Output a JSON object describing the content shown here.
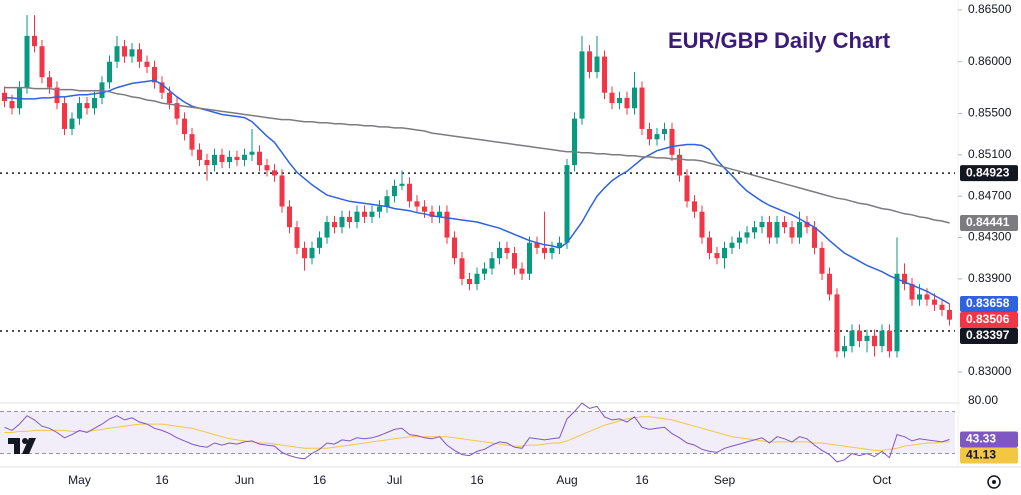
{
  "chart_data": {
    "type": "candlestick",
    "title": "EUR/GBP Daily Chart",
    "categories": [
      null,
      null,
      null,
      null,
      null,
      null,
      null,
      null,
      null,
      null,
      "May",
      null,
      null,
      null,
      null,
      null,
      null,
      null,
      null,
      null,
      null,
      "16",
      null,
      null,
      null,
      null,
      null,
      null,
      null,
      null,
      null,
      null,
      "Jun",
      null,
      null,
      null,
      null,
      null,
      null,
      null,
      null,
      null,
      "16",
      null,
      null,
      null,
      null,
      null,
      null,
      null,
      null,
      null,
      "Jul",
      null,
      null,
      null,
      null,
      null,
      null,
      null,
      null,
      null,
      null,
      "16",
      null,
      null,
      null,
      null,
      null,
      null,
      null,
      null,
      null,
      null,
      null,
      "Aug",
      null,
      null,
      null,
      null,
      null,
      null,
      null,
      null,
      null,
      "16",
      null,
      null,
      null,
      null,
      null,
      null,
      null,
      null,
      null,
      null,
      "Sep",
      null,
      null,
      null,
      null,
      null,
      null,
      null,
      null,
      null,
      null,
      null,
      null,
      null,
      null,
      null,
      null,
      null,
      null,
      null,
      null,
      "Oct",
      null,
      null,
      null,
      null,
      null,
      null,
      null,
      null,
      null
    ],
    "open": [
      0.857,
      0.8562,
      0.8555,
      0.8575,
      0.8625,
      0.8615,
      0.8585,
      0.8575,
      0.856,
      0.8535,
      0.8545,
      0.856,
      0.8555,
      0.8565,
      0.858,
      0.86,
      0.8615,
      0.8605,
      0.8612,
      0.86,
      0.8595,
      0.858,
      0.857,
      0.856,
      0.8545,
      0.853,
      0.8515,
      0.8505,
      0.85,
      0.851,
      0.8503,
      0.8508,
      0.8505,
      0.851,
      0.8513,
      0.85,
      0.8495,
      0.849,
      0.846,
      0.844,
      0.842,
      0.841,
      0.842,
      0.843,
      0.8445,
      0.844,
      0.845,
      0.8445,
      0.8455,
      0.845,
      0.8455,
      0.846,
      0.847,
      0.848,
      0.8482,
      0.8465,
      0.846,
      0.8455,
      0.845,
      0.8455,
      0.843,
      0.841,
      0.839,
      0.8385,
      0.8395,
      0.84,
      0.841,
      0.842,
      0.8415,
      0.84,
      0.8395,
      0.8425,
      0.842,
      0.8415,
      0.842,
      0.8425,
      0.85,
      0.8545,
      0.861,
      0.859,
      0.8605,
      0.857,
      0.856,
      0.8565,
      0.8555,
      0.8575,
      0.8535,
      0.8525,
      0.853,
      0.8535,
      0.851,
      0.849,
      0.8465,
      0.8455,
      0.843,
      0.8415,
      0.841,
      0.842,
      0.8425,
      0.843,
      0.8435,
      0.844,
      0.8445,
      0.843,
      0.8445,
      0.844,
      0.843,
      0.8445,
      0.844,
      0.842,
      0.8395,
      0.8375,
      0.832,
      0.8325,
      0.834,
      0.833,
      0.8335,
      0.8325,
      0.834,
      0.832,
      0.8395,
      0.8385,
      0.837,
      0.8375,
      0.837,
      0.8365,
      0.836
    ],
    "high": [
      0.8576,
      0.8568,
      0.8581,
      0.8645,
      0.8645,
      0.8621,
      0.8591,
      0.8581,
      0.8566,
      0.8551,
      0.8566,
      0.8566,
      0.8571,
      0.8586,
      0.8606,
      0.8625,
      0.8621,
      0.8618,
      0.8618,
      0.8606,
      0.8601,
      0.8586,
      0.8576,
      0.8566,
      0.8551,
      0.8536,
      0.8521,
      0.8511,
      0.8516,
      0.8516,
      0.8514,
      0.8514,
      0.8516,
      0.8535,
      0.8519,
      0.8506,
      0.8501,
      0.8496,
      0.8466,
      0.8446,
      0.8426,
      0.8426,
      0.8436,
      0.8451,
      0.8451,
      0.8456,
      0.8456,
      0.8461,
      0.8461,
      0.8461,
      0.8466,
      0.8476,
      0.8486,
      0.8495,
      0.8488,
      0.8471,
      0.8466,
      0.8461,
      0.8461,
      0.8461,
      0.8436,
      0.8416,
      0.8396,
      0.8401,
      0.8406,
      0.8416,
      0.8426,
      0.8426,
      0.8421,
      0.8406,
      0.8431,
      0.8431,
      0.8455,
      0.8426,
      0.8431,
      0.8506,
      0.8551,
      0.8625,
      0.8616,
      0.8625,
      0.8611,
      0.8576,
      0.8571,
      0.8571,
      0.859,
      0.8581,
      0.8541,
      0.8536,
      0.8541,
      0.8541,
      0.8516,
      0.8496,
      0.8471,
      0.8461,
      0.8436,
      0.8421,
      0.8426,
      0.8431,
      0.8436,
      0.8441,
      0.8446,
      0.8451,
      0.8451,
      0.8451,
      0.8451,
      0.8446,
      0.8455,
      0.8451,
      0.8446,
      0.8426,
      0.8401,
      0.8381,
      0.8335,
      0.8346,
      0.8346,
      0.8341,
      0.8341,
      0.8346,
      0.8346,
      0.843,
      0.8405,
      0.8391,
      0.8385,
      0.8381,
      0.8376,
      0.8371,
      0.8366
    ],
    "low": [
      0.8556,
      0.8549,
      0.8549,
      0.8569,
      0.8609,
      0.8579,
      0.8569,
      0.8554,
      0.8529,
      0.8529,
      0.8539,
      0.8549,
      0.8549,
      0.8559,
      0.8574,
      0.8594,
      0.8599,
      0.8599,
      0.8594,
      0.8589,
      0.8574,
      0.8564,
      0.8554,
      0.8539,
      0.8524,
      0.8509,
      0.8499,
      0.8485,
      0.8494,
      0.8497,
      0.8497,
      0.8499,
      0.8499,
      0.8504,
      0.8494,
      0.8489,
      0.8484,
      0.8454,
      0.8434,
      0.8414,
      0.8398,
      0.8404,
      0.8414,
      0.8424,
      0.8434,
      0.8434,
      0.8439,
      0.8439,
      0.8444,
      0.8444,
      0.8449,
      0.8454,
      0.8464,
      0.8476,
      0.8459,
      0.8454,
      0.8449,
      0.8444,
      0.8444,
      0.8424,
      0.8404,
      0.8384,
      0.8379,
      0.8379,
      0.8389,
      0.8394,
      0.8404,
      0.8409,
      0.8394,
      0.8389,
      0.8389,
      0.8414,
      0.8409,
      0.8409,
      0.8414,
      0.8419,
      0.8494,
      0.8539,
      0.8584,
      0.8584,
      0.8564,
      0.8554,
      0.8554,
      0.8549,
      0.8549,
      0.8529,
      0.8519,
      0.8519,
      0.8524,
      0.8504,
      0.8484,
      0.8459,
      0.8449,
      0.8424,
      0.8409,
      0.8404,
      0.84,
      0.8414,
      0.8419,
      0.8424,
      0.8429,
      0.8434,
      0.8424,
      0.8424,
      0.8434,
      0.8424,
      0.8424,
      0.8434,
      0.8414,
      0.8389,
      0.8369,
      0.8314,
      0.8314,
      0.8319,
      0.8324,
      0.8319,
      0.8315,
      0.8319,
      0.8314,
      0.8314,
      0.8379,
      0.8364,
      0.8364,
      0.8364,
      0.8359,
      0.8354,
      0.8345
    ],
    "close": [
      0.8562,
      0.8555,
      0.8575,
      0.8625,
      0.8615,
      0.8585,
      0.8575,
      0.856,
      0.8535,
      0.8545,
      0.856,
      0.8555,
      0.8565,
      0.858,
      0.86,
      0.8615,
      0.8605,
      0.8612,
      0.86,
      0.8595,
      0.858,
      0.857,
      0.856,
      0.8545,
      0.853,
      0.8515,
      0.8505,
      0.85,
      0.851,
      0.8503,
      0.8508,
      0.8505,
      0.851,
      0.8513,
      0.85,
      0.8495,
      0.849,
      0.846,
      0.844,
      0.842,
      0.841,
      0.842,
      0.843,
      0.8445,
      0.844,
      0.845,
      0.8445,
      0.8455,
      0.845,
      0.8455,
      0.846,
      0.847,
      0.848,
      0.8482,
      0.8465,
      0.846,
      0.8455,
      0.845,
      0.8455,
      0.843,
      0.841,
      0.839,
      0.8385,
      0.8395,
      0.84,
      0.841,
      0.842,
      0.8415,
      0.84,
      0.8395,
      0.8425,
      0.842,
      0.8415,
      0.842,
      0.8425,
      0.85,
      0.8545,
      0.861,
      0.859,
      0.8605,
      0.857,
      0.856,
      0.8565,
      0.8555,
      0.8575,
      0.8535,
      0.8525,
      0.853,
      0.8535,
      0.851,
      0.849,
      0.8465,
      0.8455,
      0.843,
      0.8415,
      0.841,
      0.842,
      0.8425,
      0.843,
      0.8435,
      0.844,
      0.8445,
      0.843,
      0.8445,
      0.844,
      0.843,
      0.8445,
      0.844,
      0.842,
      0.8395,
      0.8375,
      0.832,
      0.8325,
      0.834,
      0.833,
      0.8335,
      0.8325,
      0.834,
      0.832,
      0.8395,
      0.8385,
      0.837,
      0.8375,
      0.837,
      0.8365,
      0.836,
      0.83506
    ],
    "up_color": "#089981",
    "down_color": "#f23645",
    "ylim": [
      0.83,
      0.865
    ],
    "yticks": [
      {
        "value": 0.865,
        "label": "0.86500"
      },
      {
        "value": 0.86,
        "label": "0.86000"
      },
      {
        "value": 0.855,
        "label": "0.85500"
      },
      {
        "value": 0.851,
        "label": "0.85100"
      },
      {
        "value": 0.847,
        "label": "0.84700"
      },
      {
        "value": 0.843,
        "label": "0.84300"
      },
      {
        "value": 0.839,
        "label": "0.83900"
      },
      {
        "value": 0.83,
        "label": "0.83000"
      }
    ],
    "hlines": [
      0.84923,
      0.83397
    ],
    "overlays": [
      {
        "color": "#2f62e0",
        "values": [
          0.8565,
          0.8565,
          0.8564,
          0.8564,
          0.8564,
          0.8565,
          0.8565,
          0.8566,
          0.8566,
          0.8567,
          0.8568,
          0.8568,
          0.8569,
          0.857,
          0.8572,
          0.8575,
          0.8577,
          0.8579,
          0.858,
          0.8581,
          0.8582,
          0.8578,
          0.8572,
          0.8566,
          0.8561,
          0.8557,
          0.8555,
          0.8553,
          0.8551,
          0.8549,
          0.8548,
          0.8547,
          0.8546,
          0.8542,
          0.8535,
          0.8528,
          0.8522,
          0.8512,
          0.8502,
          0.8493,
          0.8487,
          0.8481,
          0.8476,
          0.8471,
          0.8469,
          0.8467,
          0.8465,
          0.8464,
          0.8463,
          0.8462,
          0.8461,
          0.846,
          0.8458,
          0.8457,
          0.8456,
          0.8454,
          0.8453,
          0.8451,
          0.845,
          0.8449,
          0.8448,
          0.8447,
          0.8446,
          0.8445,
          0.8443,
          0.8441,
          0.8439,
          0.8436,
          0.8433,
          0.843,
          0.8427,
          0.8425,
          0.8423,
          0.8422,
          0.842,
          0.8425,
          0.8435,
          0.8445,
          0.8458,
          0.847,
          0.8478,
          0.8485,
          0.849,
          0.8494,
          0.85,
          0.8506,
          0.851,
          0.8514,
          0.8516,
          0.8518,
          0.8519,
          0.852,
          0.852,
          0.8519,
          0.8515,
          0.8505,
          0.8497,
          0.849,
          0.8482,
          0.8475,
          0.847,
          0.8465,
          0.8461,
          0.8458,
          0.8455,
          0.8452,
          0.8448,
          0.8444,
          0.844,
          0.8434,
          0.8427,
          0.8421,
          0.8415,
          0.8411,
          0.8407,
          0.8403,
          0.84,
          0.8397,
          0.8393,
          0.839,
          0.8387,
          0.8384,
          0.8381,
          0.8378,
          0.8374,
          0.837,
          0.83658
        ]
      },
      {
        "color": "#7b7b80",
        "values": [
          0.8575,
          0.8575,
          0.8575,
          0.8575,
          0.8574,
          0.8574,
          0.8574,
          0.8573,
          0.8573,
          0.8573,
          0.8572,
          0.8572,
          0.8572,
          0.8572,
          0.8571,
          0.8569,
          0.8568,
          0.8566,
          0.8565,
          0.8563,
          0.8562,
          0.856,
          0.8559,
          0.8558,
          0.8557,
          0.8556,
          0.8555,
          0.8554,
          0.8553,
          0.8552,
          0.8551,
          0.855,
          0.8549,
          0.8548,
          0.8547,
          0.8546,
          0.8545,
          0.8544,
          0.8544,
          0.8543,
          0.8542,
          0.8542,
          0.8541,
          0.8541,
          0.854,
          0.854,
          0.8539,
          0.8539,
          0.8538,
          0.8538,
          0.8537,
          0.8537,
          0.8536,
          0.8536,
          0.8535,
          0.8534,
          0.8533,
          0.8531,
          0.853,
          0.8529,
          0.8528,
          0.8527,
          0.8526,
          0.8525,
          0.8524,
          0.8523,
          0.8522,
          0.8521,
          0.852,
          0.8519,
          0.8518,
          0.8517,
          0.8516,
          0.8515,
          0.8514,
          0.8513,
          0.8513,
          0.8512,
          0.8512,
          0.8511,
          0.8511,
          0.851,
          0.851,
          0.8509,
          0.8509,
          0.8508,
          0.8508,
          0.8507,
          0.8507,
          0.8506,
          0.8506,
          0.8505,
          0.8505,
          0.8504,
          0.8502,
          0.85,
          0.8498,
          0.8496,
          0.8494,
          0.8492,
          0.849,
          0.8488,
          0.8486,
          0.8484,
          0.8482,
          0.848,
          0.8478,
          0.8476,
          0.8474,
          0.8472,
          0.847,
          0.8468,
          0.8467,
          0.8465,
          0.8463,
          0.8462,
          0.846,
          0.8458,
          0.8457,
          0.8455,
          0.8453,
          0.8452,
          0.845,
          0.8449,
          0.8447,
          0.8446,
          0.84441
        ]
      }
    ],
    "rsi": {
      "color": "#7e57c2",
      "ma_color": "#f2c744",
      "ylim": [
        20,
        80
      ],
      "bands": [
        30,
        70
      ],
      "yticks": [
        {
          "value": 80,
          "label": "80.00"
        }
      ],
      "values": [
        55,
        52,
        58,
        66,
        62,
        56,
        54,
        50,
        45,
        48,
        52,
        50,
        54,
        58,
        63,
        66,
        62,
        64,
        60,
        58,
        54,
        52,
        49,
        45,
        42,
        39,
        37,
        36,
        40,
        38,
        40,
        39,
        41,
        42,
        39,
        38,
        37,
        31,
        28,
        26,
        25,
        30,
        34,
        40,
        39,
        43,
        42,
        45,
        44,
        45,
        47,
        50,
        53,
        54,
        48,
        47,
        45,
        44,
        46,
        38,
        33,
        29,
        28,
        32,
        34,
        38,
        41,
        40,
        36,
        35,
        45,
        44,
        43,
        44,
        45,
        63,
        70,
        78,
        73,
        75,
        65,
        62,
        63,
        60,
        65,
        55,
        53,
        54,
        55,
        49,
        45,
        40,
        38,
        34,
        32,
        31,
        35,
        37,
        39,
        41,
        43,
        45,
        40,
        46,
        44,
        41,
        46,
        44,
        38,
        33,
        29,
        22,
        24,
        30,
        28,
        30,
        27,
        32,
        26,
        48,
        46,
        42,
        44,
        43,
        42,
        41,
        43.33
      ],
      "ma": [
        50,
        50,
        51,
        51,
        52,
        52,
        52,
        52,
        52,
        51,
        51,
        51,
        52,
        53,
        54,
        55,
        56,
        57,
        58,
        58,
        58,
        58,
        57,
        56,
        55,
        54,
        52,
        50,
        48,
        46,
        44,
        43,
        42,
        41,
        40,
        40,
        39,
        38,
        37,
        36,
        35,
        35,
        35,
        35,
        36,
        37,
        38,
        39,
        40,
        41,
        42,
        43,
        44,
        45,
        46,
        46,
        46,
        46,
        46,
        46,
        45,
        44,
        43,
        42,
        41,
        40,
        39,
        38,
        37,
        37,
        38,
        38,
        39,
        40,
        40,
        42,
        45,
        48,
        51,
        54,
        57,
        59,
        61,
        63,
        64,
        65,
        65,
        64,
        63,
        62,
        60,
        58,
        56,
        54,
        52,
        50,
        48,
        46,
        45,
        44,
        43,
        42,
        41,
        41,
        41,
        41,
        41,
        41,
        40,
        40,
        39,
        38,
        37,
        36,
        35,
        34,
        33,
        33,
        34,
        35,
        37,
        38,
        39,
        40,
        40,
        41,
        41.13
      ]
    }
  }
}
